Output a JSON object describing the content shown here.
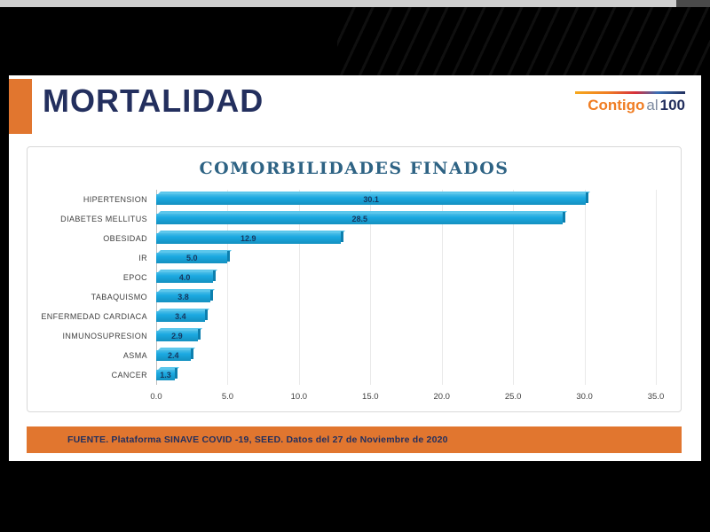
{
  "theme": {
    "orange": "#e1762f",
    "orange_bright": "#f07d23",
    "navy": "#232f5e",
    "value_navy": "#17375e",
    "bar_cyan": "#1ba9e1",
    "chart_title_color": "#2e6384"
  },
  "header": {
    "title": "MORTALIDAD",
    "logo": {
      "contigo": "Contigo",
      "al": "al",
      "num": "100"
    }
  },
  "chart_data": {
    "type": "bar",
    "orientation": "horizontal",
    "title": "COMORBILIDADES FINADOS",
    "categories": [
      "HIPERTENSION",
      "DIABETES MELLITUS",
      "OBESIDAD",
      "IR",
      "EPOC",
      "TABAQUISMO",
      "ENFERMEDAD CARDIACA",
      "INMUNOSUPRESION",
      "ASMA",
      "CANCER"
    ],
    "values": [
      30.1,
      28.5,
      12.9,
      5.0,
      4.0,
      3.8,
      3.4,
      2.9,
      2.4,
      1.3
    ],
    "xlim": [
      0,
      35
    ],
    "xticks": [
      0,
      5,
      10,
      15,
      20,
      25,
      30,
      35
    ],
    "grid": true,
    "legend": "none"
  },
  "footer": {
    "source": "FUENTE. Plataforma SINAVE COVID -19, SEED. Datos del 27 de Noviembre de 2020"
  }
}
